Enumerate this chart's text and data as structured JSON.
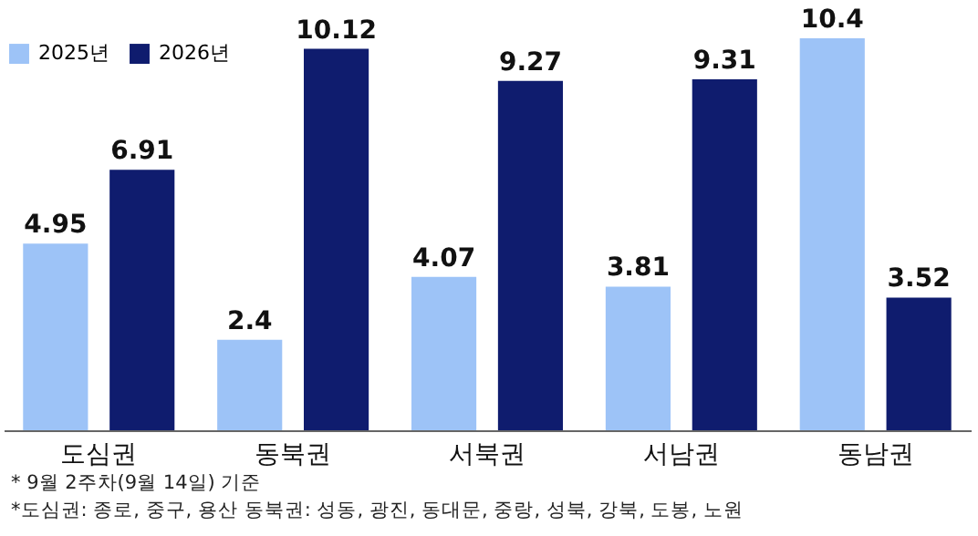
{
  "chart_data": {
    "type": "bar",
    "categories": [
      "도심권",
      "동북권",
      "서북권",
      "서남권",
      "동남권"
    ],
    "series": [
      {
        "name": "2025년",
        "color": "#9dc3f7",
        "values": [
          4.95,
          2.4,
          4.07,
          3.81,
          10.4
        ]
      },
      {
        "name": "2026년",
        "color": "#0f1c6e",
        "values": [
          6.91,
          10.12,
          9.27,
          9.31,
          3.52
        ]
      }
    ],
    "data_labels": true,
    "legend": "top left",
    "annotations": [
      "* 9월 2주차(9월 14일) 기준",
      "*도심권: 종로, 중구, 용산 동북권: 성동, 광진, 동대문, 중랑, 성북, 강북, 도봉, 노원"
    ]
  }
}
